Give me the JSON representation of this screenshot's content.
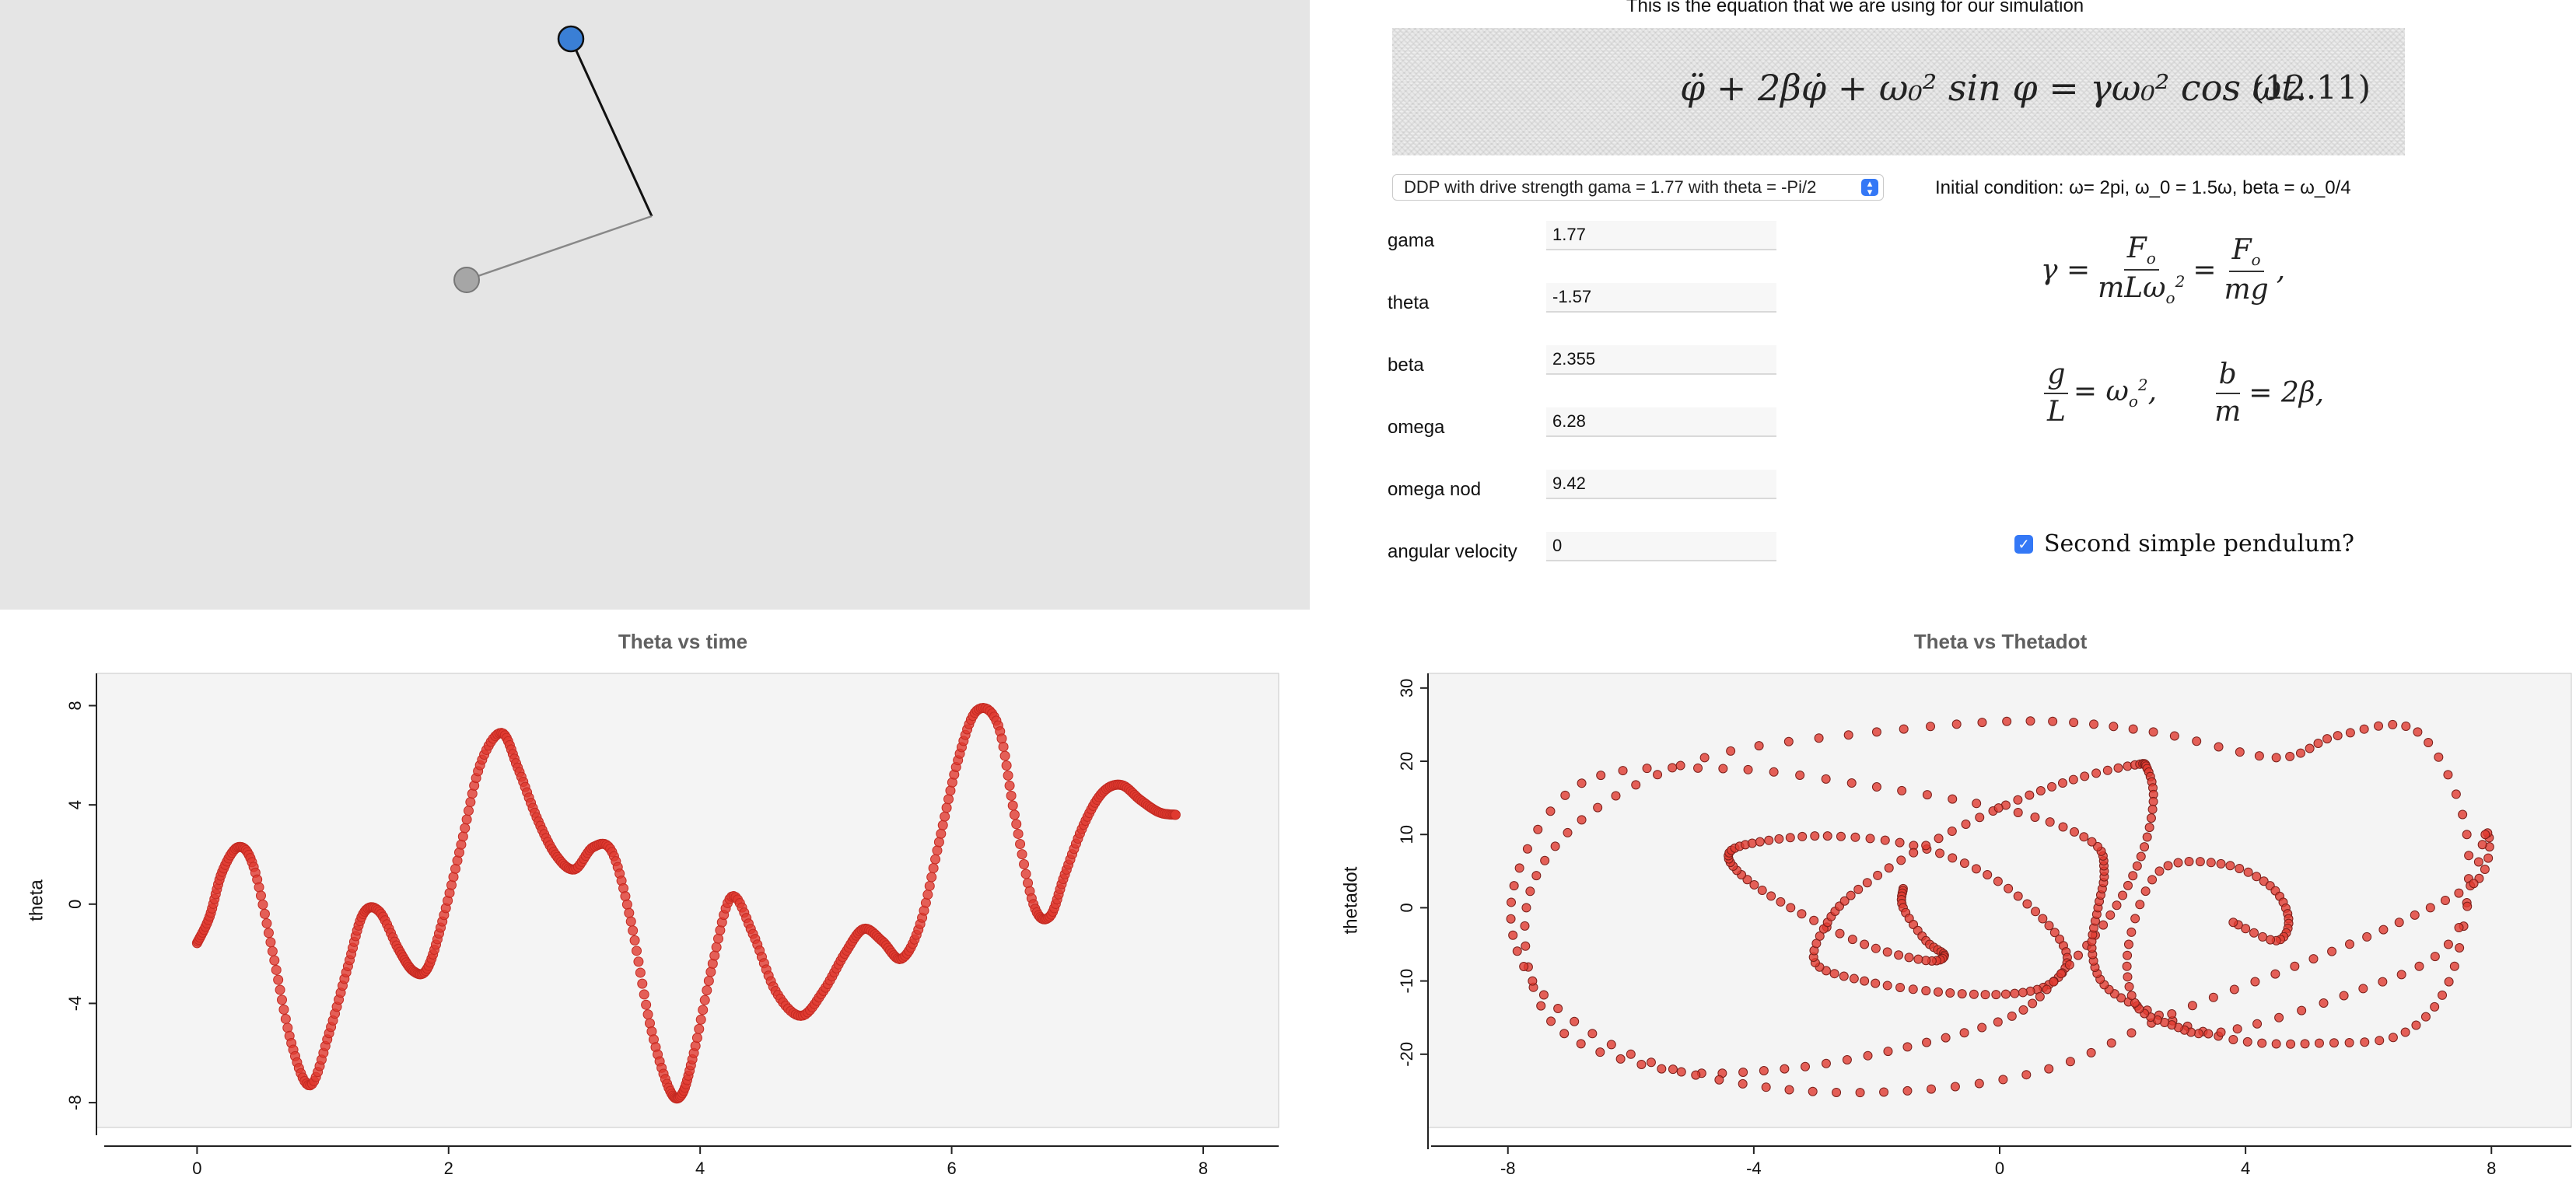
{
  "simulation": {
    "pendulum_primary_color": "#3a7fd5",
    "pendulum_secondary_color": "#a6a6a6",
    "background_color": "#e5e5e5"
  },
  "equation": {
    "caption": "This is the equation that we are using for our simulation",
    "formula": "φ̈ + 2βφ̇ + ω₀² sin φ = γω₀² cos ωt.",
    "number": "(12.11)"
  },
  "preset_select": {
    "selected": "DDP with drive strength gama = 1.77 with theta = -Pi/2"
  },
  "initial_condition": "Initial condition: ω= 2pi, ω_0 = 1.5ω, beta = ω_0/4",
  "params": [
    {
      "label": "gama",
      "value": "1.77"
    },
    {
      "label": "theta",
      "value": "-1.57"
    },
    {
      "label": "beta",
      "value": "2.355"
    },
    {
      "label": "omega",
      "value": "6.28"
    },
    {
      "label": "omega nod",
      "value": "9.42"
    },
    {
      "label": "angular velocity",
      "value": "0"
    }
  ],
  "formulas": {
    "gamma_def": "γ = F₀/(mLω₀²) = F₀/(mg),",
    "relations": "g/L = ω₀², b/m = 2β,"
  },
  "checkbox": {
    "label": "Second simple pendulum?",
    "checked": true
  },
  "chart_data": [
    {
      "type": "scatter",
      "title": "Theta vs time",
      "xlabel": "",
      "ylabel": "theta",
      "xlim": [
        -0.8,
        8.6
      ],
      "ylim": [
        -9,
        9.3
      ],
      "xticks": [
        0,
        2,
        4,
        6,
        8
      ],
      "yticks": [
        -8,
        -4,
        0,
        4,
        8
      ],
      "color": "#e03a2f",
      "x": [
        0,
        0.1,
        0.2,
        0.33,
        0.45,
        0.6,
        0.75,
        0.9,
        1.05,
        1.2,
        1.32,
        1.45,
        1.6,
        1.72,
        1.83,
        1.95,
        2.1,
        2.25,
        2.42,
        2.55,
        2.7,
        2.85,
        3.0,
        3.15,
        3.3,
        3.45,
        3.6,
        3.75,
        3.85,
        3.95,
        4.1,
        4.25,
        4.42,
        4.6,
        4.8,
        4.98,
        5.15,
        5.3,
        5.45,
        5.6,
        5.75,
        5.9,
        6.05,
        6.2,
        6.37,
        6.5,
        6.65,
        6.78,
        6.9,
        7.05,
        7.2,
        7.35,
        7.5,
        7.65,
        7.78
      ],
      "y": [
        -1.57,
        -0.5,
        1.3,
        2.3,
        1.5,
        -1.9,
        -5.6,
        -7.3,
        -5.2,
        -2.5,
        -0.4,
        -0.3,
        -1.8,
        -2.7,
        -2.6,
        -0.7,
        2.4,
        5.6,
        6.9,
        5.5,
        3.5,
        2.0,
        1.4,
        2.3,
        2.1,
        -0.7,
        -4.8,
        -7.4,
        -7.7,
        -6.0,
        -2.4,
        0.3,
        -1.2,
        -3.5,
        -4.5,
        -3.5,
        -2.0,
        -1.0,
        -1.5,
        -2.2,
        -0.8,
        2.5,
        5.8,
        7.8,
        7.2,
        3.6,
        0.0,
        -0.5,
        1.2,
        3.2,
        4.5,
        4.8,
        4.2,
        3.7,
        3.6
      ]
    },
    {
      "type": "scatter",
      "title": "Theta vs Thetadot",
      "xlabel": "",
      "ylabel": "thetadot",
      "xlim": [
        -9.3,
        9.3
      ],
      "ylim": [
        -30,
        32
      ],
      "xticks": [
        -8,
        -4,
        0,
        4,
        8
      ],
      "yticks": [
        -20,
        -10,
        0,
        10,
        20,
        30
      ],
      "color": "#e03a2f",
      "x": [
        -1.57,
        -1.57,
        -1.2,
        -0.9,
        -1.2,
        -2.2,
        -3.4,
        -4.2,
        -4.4,
        -3.9,
        -2.8,
        -1.4,
        -0.2,
        0.7,
        1.1,
        0.8,
        0.1,
        -1.0,
        -2.2,
        -3.0,
        -2.8,
        -2.3,
        -1.2,
        0.1,
        1.2,
        2.2,
        2.4,
        2.5,
        2.3,
        1.8,
        1.0,
        0.2,
        -1.5,
        -3.5,
        -5.5,
        -7.3,
        -7.7,
        -6.8,
        -4.8,
        -2.0,
        0.5,
        2.5,
        4.5,
        5.5,
        6.8,
        7.6,
        7.4,
        6.6,
        5.2,
        3.8,
        2.4,
        1.7,
        1.5,
        1.6,
        1.7,
        1.5,
        0.3,
        -2.0,
        -4.5,
        -6.8,
        -7.9,
        -7.6,
        -6.0,
        -3.8,
        -1.5,
        0.8,
        2.8,
        4.8,
        6.5,
        7.8,
        7.9,
        7.3,
        5.6,
        3.6,
        2.8,
        2.2,
        2.1,
        2.6,
        3.6,
        4.4,
        4.7,
        4.5,
        3.8
      ],
      "y": [
        2.6,
        0,
        -4.5,
        -6.5,
        -7.2,
        -5.0,
        0.0,
        4.5,
        7.5,
        9.0,
        9.8,
        8.5,
        4.5,
        -1.5,
        -6.8,
        -10.5,
        -11.8,
        -11.5,
        -10.0,
        -7.5,
        -2.0,
        2.5,
        8.5,
        14.0,
        17.5,
        19.5,
        19.0,
        14.5,
        7.0,
        -1.0,
        -9.0,
        -14.8,
        -19.0,
        -22.0,
        -22.0,
        -15.5,
        0.0,
        12.0,
        20.5,
        24.0,
        25.5,
        24.0,
        20.5,
        23.5,
        24.0,
        10.0,
        -8.0,
        -17.0,
        -18.5,
        -18.0,
        -14.0,
        -10.5,
        -5.5,
        0.0,
        5.0,
        9.0,
        13.0,
        16.5,
        19.0,
        17.0,
        3.0,
        -10.0,
        -20.0,
        -24.5,
        -25.0,
        -22.0,
        -14.5,
        -8.0,
        -2.0,
        4.0,
        10.0,
        -5.0,
        -12.0,
        -17.0,
        -16.0,
        -13.0,
        -5.0,
        5.0,
        6.0,
        3.0,
        -1.5,
        -4.5,
        -2.0
      ]
    }
  ]
}
